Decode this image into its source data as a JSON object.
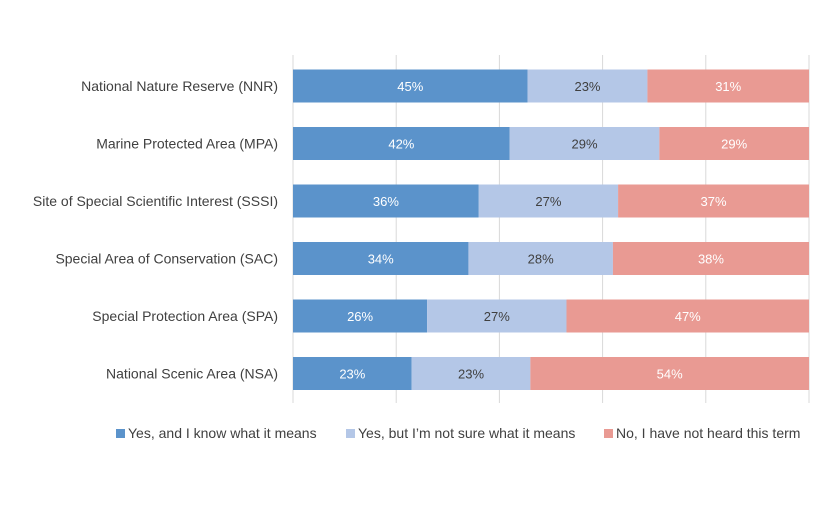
{
  "chart_data": {
    "type": "bar",
    "orientation": "horizontal",
    "stacked": true,
    "percent_stacked": true,
    "title": "",
    "xlabel": "",
    "ylabel": "",
    "xlim": [
      0,
      100
    ],
    "grid": true,
    "legend_position": "bottom",
    "categories": [
      "National Nature Reserve (NNR)",
      "Marine Protected Area (MPA)",
      "Site of Special Scientific Interest (SSSI)",
      "Special Area of Conservation (SAC)",
      "Special Protection Area (SPA)",
      "National Scenic Area (NSA)"
    ],
    "series": [
      {
        "name": "Yes, and I know what it means",
        "color": "#5b93cb",
        "label_color": "#ffffff",
        "values": [
          45,
          42,
          36,
          34,
          26,
          23
        ]
      },
      {
        "name": "Yes, but I’m not sure what it means",
        "color": "#b4c7e7",
        "label_color": "#404040",
        "values": [
          23,
          29,
          27,
          28,
          27,
          23
        ]
      },
      {
        "name": "No, I have not heard this term",
        "color": "#e99a93",
        "label_color": "#ffffff",
        "values": [
          31,
          29,
          37,
          38,
          47,
          54
        ]
      }
    ]
  }
}
